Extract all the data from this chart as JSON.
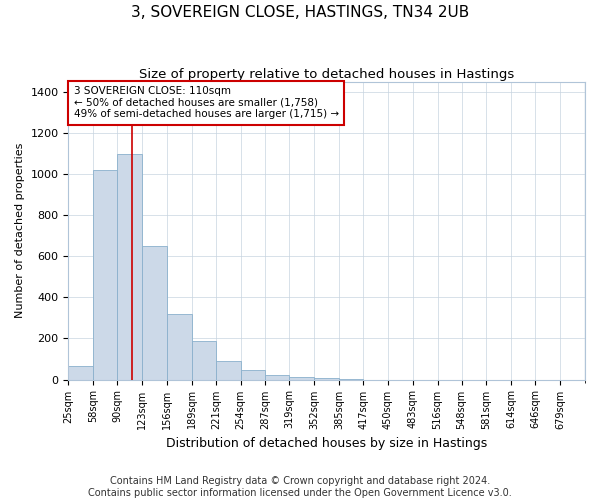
{
  "title": "3, SOVEREIGN CLOSE, HASTINGS, TN34 2UB",
  "subtitle": "Size of property relative to detached houses in Hastings",
  "xlabel": "Distribution of detached houses by size in Hastings",
  "ylabel": "Number of detached properties",
  "bar_labels": [
    "25sqm",
    "58sqm",
    "90sqm",
    "123sqm",
    "156sqm",
    "189sqm",
    "221sqm",
    "254sqm",
    "287sqm",
    "319sqm",
    "352sqm",
    "385sqm",
    "417sqm",
    "450sqm",
    "483sqm",
    "516sqm",
    "548sqm",
    "581sqm",
    "614sqm",
    "646sqm",
    "679sqm"
  ],
  "bar_heights": [
    65,
    1020,
    1100,
    650,
    320,
    190,
    90,
    47,
    20,
    12,
    7,
    3,
    0,
    0,
    0,
    0,
    0,
    0,
    0,
    0,
    0
  ],
  "bar_color": "#ccd9e8",
  "bar_edge_color": "#8ab0cc",
  "annotation_box_text": "3 SOVEREIGN CLOSE: 110sqm\n← 50% of detached houses are smaller (1,758)\n49% of semi-detached houses are larger (1,715) →",
  "annotation_box_color": "#ffffff",
  "annotation_box_edgecolor": "#cc0000",
  "vline_color": "#cc0000",
  "vline_x": 110,
  "ylim": [
    0,
    1450
  ],
  "yticks": [
    0,
    200,
    400,
    600,
    800,
    1000,
    1200,
    1400
  ],
  "footer_line1": "Contains HM Land Registry data © Crown copyright and database right 2024.",
  "footer_line2": "Contains public sector information licensed under the Open Government Licence v3.0.",
  "background_color": "#ffffff",
  "plot_background_color": "#ffffff",
  "grid_color": "#c8d4e0",
  "title_fontsize": 11,
  "subtitle_fontsize": 9.5,
  "xlabel_fontsize": 9,
  "ylabel_fontsize": 8,
  "tick_fontsize": 7,
  "footer_fontsize": 7,
  "bin_edges": [
    25,
    58,
    90,
    123,
    156,
    189,
    221,
    254,
    287,
    319,
    352,
    385,
    417,
    450,
    483,
    516,
    548,
    581,
    614,
    646,
    679,
    712
  ]
}
